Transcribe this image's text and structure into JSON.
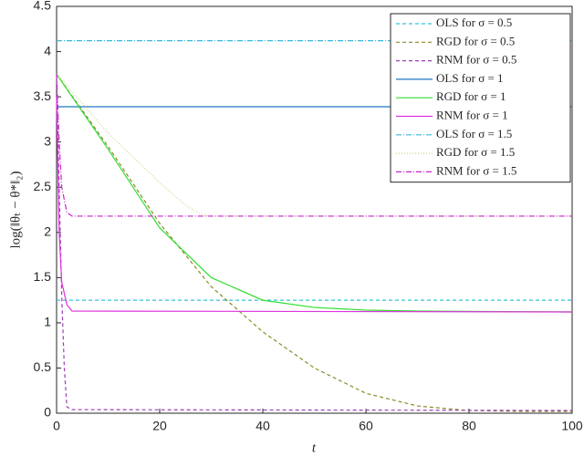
{
  "chart_data": {
    "type": "line",
    "xlabel": "t",
    "ylabel": "log(‖θₜ − θ*‖₂)",
    "xlim": [
      0,
      100
    ],
    "xticks": [
      0,
      20,
      40,
      60,
      80,
      100
    ],
    "ylim": [
      0,
      4.5
    ],
    "yticks": [
      0,
      0.5,
      1,
      1.5,
      2,
      2.5,
      3,
      3.5,
      4,
      4.5
    ],
    "legend": "upper right",
    "series": [
      {
        "name": "OLS for σ = 0.5",
        "color": "#33c4d6",
        "linestyle": "dashed",
        "x": [
          0,
          100
        ],
        "values": [
          1.25,
          1.25
        ]
      },
      {
        "name": "RGD for σ = 0.5",
        "color": "#8a8a2a",
        "linestyle": "dashed",
        "x": [
          0,
          10,
          20,
          30,
          40,
          50,
          60,
          70,
          80,
          90,
          100
        ],
        "values": [
          3.75,
          2.95,
          2.1,
          1.4,
          0.9,
          0.5,
          0.22,
          0.08,
          0.03,
          0.02,
          0.02
        ]
      },
      {
        "name": "RNM for σ = 0.5",
        "color": "#9b3fb5",
        "linestyle": "dashed",
        "x": [
          0,
          0.5,
          1,
          1.5,
          2,
          3,
          100
        ],
        "values": [
          3.75,
          2.5,
          1.3,
          0.5,
          0.07,
          0.04,
          0.03
        ]
      },
      {
        "name": "OLS for σ = 1",
        "color": "#1f77c4",
        "linestyle": "solid",
        "x": [
          0,
          100
        ],
        "values": [
          3.39,
          3.39
        ]
      },
      {
        "name": "RGD for σ = 1",
        "color": "#33dd33",
        "linestyle": "solid",
        "x": [
          0,
          10,
          20,
          30,
          40,
          50,
          60,
          70,
          100
        ],
        "values": [
          3.75,
          2.92,
          2.05,
          1.5,
          1.25,
          1.17,
          1.14,
          1.13,
          1.12
        ]
      },
      {
        "name": "RNM for σ = 1",
        "color": "#dd33dd",
        "linestyle": "solid",
        "x": [
          0,
          0.5,
          1,
          2,
          3,
          100
        ],
        "values": [
          3.5,
          2.0,
          1.45,
          1.2,
          1.13,
          1.12
        ]
      },
      {
        "name": "OLS for σ = 1.5",
        "color": "#33bbe0",
        "linestyle": "dashdot",
        "x": [
          0,
          100
        ],
        "values": [
          4.12,
          4.12
        ]
      },
      {
        "name": "RGD for σ = 1.5",
        "color": "#c8d88a",
        "linestyle": "dotted",
        "x": [
          0,
          10,
          20,
          25,
          28,
          30,
          100
        ],
        "values": [
          3.75,
          3.1,
          2.55,
          2.3,
          2.2,
          2.18,
          2.18
        ]
      },
      {
        "name": "RNM for σ = 1.5",
        "color": "#cc22cc",
        "linestyle": "dashdot",
        "x": [
          0,
          0.5,
          1,
          2,
          3,
          100
        ],
        "values": [
          3.75,
          3.0,
          2.5,
          2.22,
          2.18,
          2.18
        ]
      }
    ]
  }
}
